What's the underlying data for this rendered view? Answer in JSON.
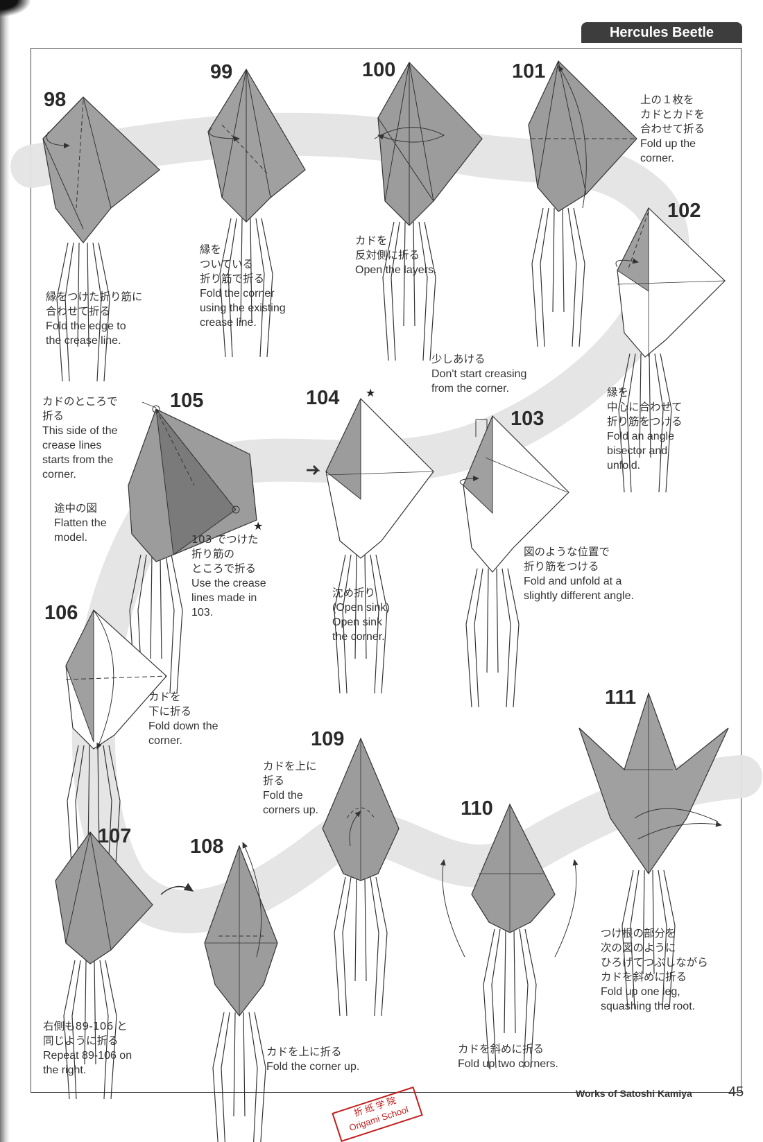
{
  "header": {
    "title": "Hercules Beetle"
  },
  "steps": [
    {
      "number": "98",
      "jp": [
        "縁をつけた折り筋に",
        "合わせて折る"
      ],
      "en": [
        "Fold the edge to",
        "the crease line."
      ]
    },
    {
      "number": "99",
      "jp": [
        "縁を",
        "ついている",
        "折り筋で折る"
      ],
      "en": [
        "Fold the corner",
        "using the existing",
        "crease line."
      ]
    },
    {
      "number": "100",
      "jp": [
        "カドを",
        "反対側に折る"
      ],
      "en": [
        "Open the layers."
      ]
    },
    {
      "number": "101",
      "jp": [
        "上の１枚を",
        "カドとカドを",
        "合わせて折る"
      ],
      "en": [
        "Fold up the",
        "corner."
      ]
    },
    {
      "number": "102",
      "jp": [
        "縁を",
        "中心に合わせて",
        "折り筋をつける"
      ],
      "en": [
        "Fold an angle",
        "bisector and",
        "unfold."
      ]
    },
    {
      "number": "103",
      "jp": [
        "図のような位置で",
        "折り筋をつける"
      ],
      "en": [
        "Fold and unfold at a",
        "slightly different angle."
      ],
      "note": {
        "jp": [
          "少しあける"
        ],
        "en": [
          "Don't start creasing",
          "from the corner."
        ]
      }
    },
    {
      "number": "104",
      "jp": [
        "沈め折り",
        "(Open sink)"
      ],
      "en": [
        "Open sink",
        "the corner."
      ]
    },
    {
      "number": "105",
      "jp": [
        "カドのところで",
        "折る"
      ],
      "en": [
        "This side of the",
        "crease lines",
        "starts from the",
        "corner."
      ],
      "note1": {
        "jp": [
          "途中の図"
        ],
        "en": [
          "Flatten the",
          "model."
        ]
      },
      "note2": {
        "jp": [
          "103 でつけた",
          "折り筋の",
          "ところで折る"
        ],
        "en": [
          "Use the crease",
          "lines made in",
          "103."
        ]
      }
    },
    {
      "number": "106",
      "jp": [
        "カドを",
        "下に折る"
      ],
      "en": [
        "Fold down the",
        "corner."
      ]
    },
    {
      "number": "107",
      "jp": [
        "右側も89-106 と",
        "同じように折る"
      ],
      "en": [
        "Repeat 89-106 on",
        "the right."
      ]
    },
    {
      "number": "108",
      "jp": [
        "カドを上に折る"
      ],
      "en": [
        "Fold the corner up."
      ]
    },
    {
      "number": "109",
      "jp": [
        "カドを上に",
        "折る"
      ],
      "en": [
        "Fold the",
        "corners up."
      ]
    },
    {
      "number": "110",
      "jp": [
        "カドを斜めに折る"
      ],
      "en": [
        "Fold up two corners."
      ]
    },
    {
      "number": "111",
      "jp": [
        "つけ根の部分を",
        "次の図のように",
        "ひろげてつぶしながら",
        "カドを斜めに折る"
      ],
      "en": [
        "Fold up one leg,",
        "squashing the root."
      ]
    }
  ],
  "footer": {
    "credit": "Works of Satoshi Kamiya",
    "page": "45"
  },
  "stamp": {
    "line1": "折 纸 学 院",
    "line2": "Origami School"
  },
  "colors": {
    "paper_gray": "#9c9c9c",
    "paper_light": "#c4c4c4",
    "band": "#e4e4e4",
    "tab": "#3d3d3d",
    "stamp": "#c41e1e"
  }
}
